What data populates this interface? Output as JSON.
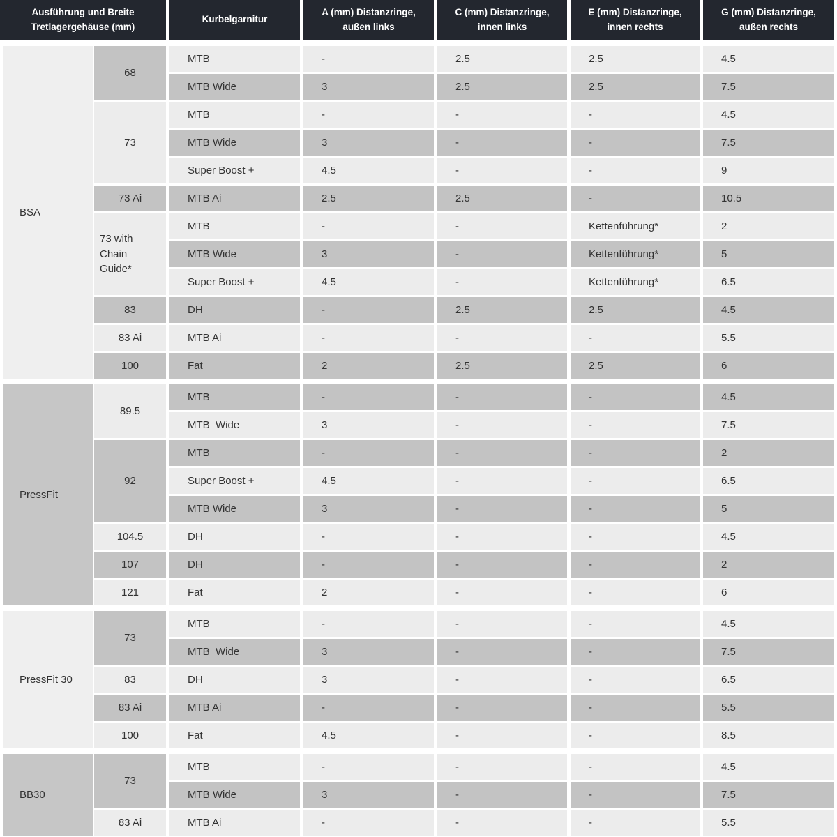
{
  "header": {
    "columns": [
      "Ausführung und Breite Tretlagergehäuse (mm)",
      "Kurbelgarnitur",
      "A (mm) Distanzringe, außen links",
      "C (mm) Distanzringe, innen links",
      "E (mm) Distanzringe, innen rechts",
      "G (mm) Distanzringe, außen rechts"
    ]
  },
  "colors": {
    "header_bg": "#23272f",
    "header_text": "#ffffff",
    "row_light": "#ececec",
    "row_gray": "#c3c3c3",
    "outer_light": "#efefef",
    "outer_gray": "#c6c6c6",
    "body_text": "#333333"
  },
  "sections": [
    {
      "name": "BSA",
      "shade": "light",
      "groups": [
        {
          "width": "68",
          "shade": "gray",
          "rows": [
            {
              "crank": "MTB",
              "shade": "light",
              "a": "-",
              "c": "2.5",
              "e": "2.5",
              "g": "4.5"
            },
            {
              "crank": "MTB Wide",
              "shade": "gray",
              "a": "3",
              "c": "2.5",
              "e": "2.5",
              "g": "7.5"
            }
          ]
        },
        {
          "width": "73",
          "shade": "light",
          "rows": [
            {
              "crank": "MTB",
              "shade": "light",
              "a": "-",
              "c": "-",
              "e": "-",
              "g": "4.5"
            },
            {
              "crank": "MTB Wide",
              "shade": "gray",
              "a": "3",
              "c": "-",
              "e": "-",
              "g": "7.5"
            },
            {
              "crank": "Super Boost +",
              "shade": "light",
              "a": "4.5",
              "c": "-",
              "e": "-",
              "g": "9"
            }
          ]
        },
        {
          "width": "73 Ai",
          "shade": "gray",
          "rows": [
            {
              "crank": "MTB Ai",
              "shade": "gray",
              "a": "2.5",
              "c": "2.5",
              "e": "-",
              "g": "10.5"
            }
          ]
        },
        {
          "width": "73 with Chain Guide*",
          "shade": "light",
          "rows": [
            {
              "crank": "MTB",
              "shade": "light",
              "a": "-",
              "c": "-",
              "e": "Kettenführung*",
              "g": "2"
            },
            {
              "crank": "MTB Wide",
              "shade": "gray",
              "a": "3",
              "c": "-",
              "e": "Kettenführung*",
              "g": "5"
            },
            {
              "crank": "Super Boost +",
              "shade": "light",
              "a": "4.5",
              "c": "-",
              "e": "Kettenführung*",
              "g": "6.5"
            }
          ]
        },
        {
          "width": "83",
          "shade": "gray",
          "rows": [
            {
              "crank": "DH",
              "shade": "gray",
              "a": "-",
              "c": "2.5",
              "e": "2.5",
              "g": "4.5"
            }
          ]
        },
        {
          "width": "83 Ai",
          "shade": "light",
          "rows": [
            {
              "crank": "MTB Ai",
              "shade": "light",
              "a": "-",
              "c": "-",
              "e": "-",
              "g": "5.5"
            }
          ]
        },
        {
          "width": "100",
          "shade": "gray",
          "rows": [
            {
              "crank": "Fat",
              "shade": "gray",
              "a": "2",
              "c": "2.5",
              "e": "2.5",
              "g": "6"
            }
          ]
        }
      ]
    },
    {
      "name": "PressFit",
      "shade": "gray",
      "groups": [
        {
          "width": "89.5",
          "shade": "light",
          "rows": [
            {
              "crank": "MTB",
              "shade": "gray",
              "a": "-",
              "c": "-",
              "e": "-",
              "g": "4.5"
            },
            {
              "crank": "MTB  Wide",
              "shade": "light",
              "a": "3",
              "c": "-",
              "e": "-",
              "g": "7.5"
            }
          ]
        },
        {
          "width": "92",
          "shade": "gray",
          "rows": [
            {
              "crank": "MTB",
              "shade": "gray",
              "a": "-",
              "c": "-",
              "e": "-",
              "g": "2"
            },
            {
              "crank": "Super Boost +",
              "shade": "light",
              "a": "4.5",
              "c": "-",
              "e": "-",
              "g": "6.5"
            },
            {
              "crank": "MTB Wide",
              "shade": "gray",
              "a": "3",
              "c": "-",
              "e": "-",
              "g": "5"
            }
          ]
        },
        {
          "width": "104.5",
          "shade": "light",
          "rows": [
            {
              "crank": "DH",
              "shade": "light",
              "a": "-",
              "c": "-",
              "e": "-",
              "g": "4.5"
            }
          ]
        },
        {
          "width": "107",
          "shade": "gray",
          "rows": [
            {
              "crank": "DH",
              "shade": "gray",
              "a": "-",
              "c": "-",
              "e": "-",
              "g": "2"
            }
          ]
        },
        {
          "width": "121",
          "shade": "light",
          "rows": [
            {
              "crank": "Fat",
              "shade": "light",
              "a": "2",
              "c": "-",
              "e": "-",
              "g": "6"
            }
          ]
        }
      ]
    },
    {
      "name": "PressFit 30",
      "shade": "light",
      "groups": [
        {
          "width": "73",
          "shade": "gray",
          "rows": [
            {
              "crank": "MTB",
              "shade": "light",
              "a": "-",
              "c": "-",
              "e": "-",
              "g": "4.5"
            },
            {
              "crank": "MTB  Wide",
              "shade": "gray",
              "a": "3",
              "c": "-",
              "e": "-",
              "g": "7.5"
            }
          ]
        },
        {
          "width": "83",
          "shade": "light",
          "rows": [
            {
              "crank": "DH",
              "shade": "light",
              "a": "3",
              "c": "-",
              "e": "-",
              "g": "6.5"
            }
          ]
        },
        {
          "width": "83 Ai",
          "shade": "gray",
          "rows": [
            {
              "crank": "MTB Ai",
              "shade": "gray",
              "a": "-",
              "c": "-",
              "e": "-",
              "g": "5.5"
            }
          ]
        },
        {
          "width": "100",
          "shade": "light",
          "rows": [
            {
              "crank": "Fat",
              "shade": "light",
              "a": "4.5",
              "c": "-",
              "e": "-",
              "g": "8.5"
            }
          ]
        }
      ]
    },
    {
      "name": "BB30",
      "shade": "gray",
      "groups": [
        {
          "width": "73",
          "shade": "gray",
          "rows": [
            {
              "crank": "MTB",
              "shade": "light",
              "a": "-",
              "c": "-",
              "e": "-",
              "g": "4.5"
            },
            {
              "crank": "MTB Wide",
              "shade": "gray",
              "a": "3",
              "c": "-",
              "e": "-",
              "g": "7.5"
            }
          ]
        },
        {
          "width": "83 Ai",
          "shade": "light",
          "rows": [
            {
              "crank": "MTB Ai",
              "shade": "light",
              "a": "-",
              "c": "-",
              "e": "-",
              "g": "5.5"
            }
          ]
        }
      ]
    }
  ]
}
